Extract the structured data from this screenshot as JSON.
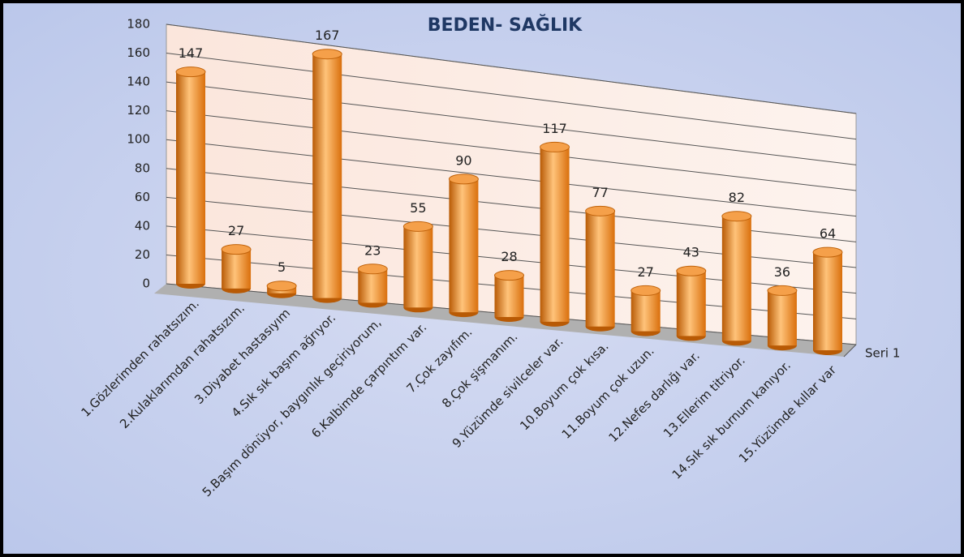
{
  "chart_data": {
    "type": "bar3d",
    "title": "BEDEN- SAĞLIK",
    "categories": [
      "1.Gözlerimden rahatsızım.",
      "2.Kulaklarımdan rahatsızım.",
      "3.Diyabet hastasıyım",
      "4.Sık sık başım ağrıyor.",
      "5.Başım dönüyor, baygınlık geçiriyorum,",
      "6.Kalbimde çarpıntım var.",
      "7.Çok zayıfım.",
      "8.Çok şişmanım.",
      "9.Yüzümde sivilceler var.",
      "10.Boyum çok kısa.",
      "11.Boyum çok uzun.",
      "12.Nefes darlığı var.",
      "13.Ellerim titriyor.",
      "14.Sık sık burnum kanıyor.",
      "15.Yüzümde kıllar var"
    ],
    "series": [
      {
        "name": "Seri 1",
        "color": "#f28c1e",
        "values": [
          147,
          27,
          5,
          167,
          23,
          55,
          90,
          28,
          117,
          77,
          27,
          43,
          82,
          36,
          64
        ]
      }
    ],
    "ylim": [
      0,
      180
    ],
    "yticks": [
      0,
      20,
      40,
      60,
      80,
      100,
      120,
      140,
      160,
      180
    ],
    "grid": true
  }
}
